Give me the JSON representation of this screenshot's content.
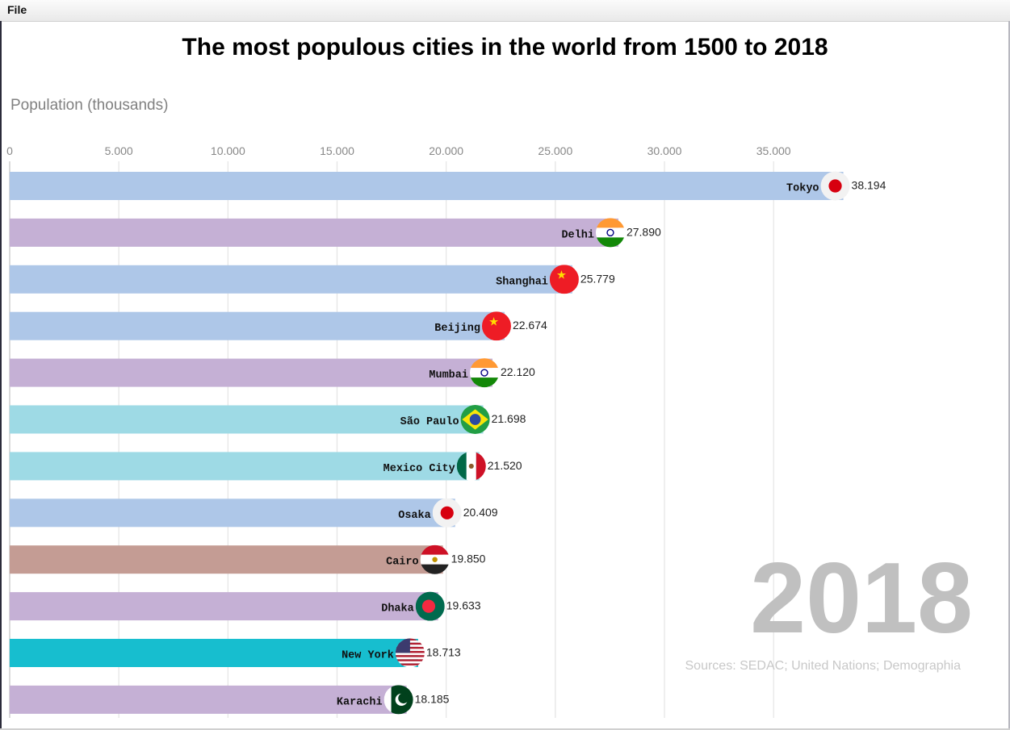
{
  "menu": {
    "file_label": "File"
  },
  "chart_data": {
    "type": "bar",
    "orientation": "horizontal",
    "title": "The most populous cities in the world from 1500 to 2018",
    "xlabel": "Population (thousands)",
    "xlim": [
      0,
      38500
    ],
    "ticks": [
      0,
      5000,
      10000,
      15000,
      20000,
      25000,
      30000,
      35000
    ],
    "tick_labels": [
      "0",
      "5.000",
      "10.000",
      "15.000",
      "20.000",
      "25.000",
      "30.000",
      "35.000"
    ],
    "grid": true,
    "year": "2018",
    "sources": "Sources: SEDAC; United Nations; Demographia",
    "bars": [
      {
        "label": "Tokyo",
        "value": 38194,
        "value_label": "38.194",
        "color": "#aec7e8",
        "flag": "japan-flag-icon"
      },
      {
        "label": "Delhi",
        "value": 27890,
        "value_label": "27.890",
        "color": "#c5b0d5",
        "flag": "india-flag-icon"
      },
      {
        "label": "Shanghai",
        "value": 25779,
        "value_label": "25.779",
        "color": "#aec7e8",
        "flag": "china-flag-icon"
      },
      {
        "label": "Beijing",
        "value": 22674,
        "value_label": "22.674",
        "color": "#aec7e8",
        "flag": "china-flag-icon"
      },
      {
        "label": "Mumbai",
        "value": 22120,
        "value_label": "22.120",
        "color": "#c5b0d5",
        "flag": "india-flag-icon"
      },
      {
        "label": "São Paulo",
        "value": 21698,
        "value_label": "21.698",
        "color": "#9edae5",
        "flag": "brazil-flag-icon"
      },
      {
        "label": "Mexico City",
        "value": 21520,
        "value_label": "21.520",
        "color": "#9edae5",
        "flag": "mexico-flag-icon"
      },
      {
        "label": "Osaka",
        "value": 20409,
        "value_label": "20.409",
        "color": "#aec7e8",
        "flag": "japan-flag-icon"
      },
      {
        "label": "Cairo",
        "value": 19850,
        "value_label": "19.850",
        "color": "#c49c94",
        "flag": "egypt-flag-icon"
      },
      {
        "label": "Dhaka",
        "value": 19633,
        "value_label": "19.633",
        "color": "#c5b0d5",
        "flag": "bangladesh-flag-icon"
      },
      {
        "label": "New York",
        "value": 18713,
        "value_label": "18.713",
        "color": "#17becf",
        "flag": "usa-flag-icon"
      },
      {
        "label": "Karachi",
        "value": 18185,
        "value_label": "18.185",
        "color": "#c5b0d5",
        "flag": "pakistan-flag-icon"
      }
    ]
  }
}
